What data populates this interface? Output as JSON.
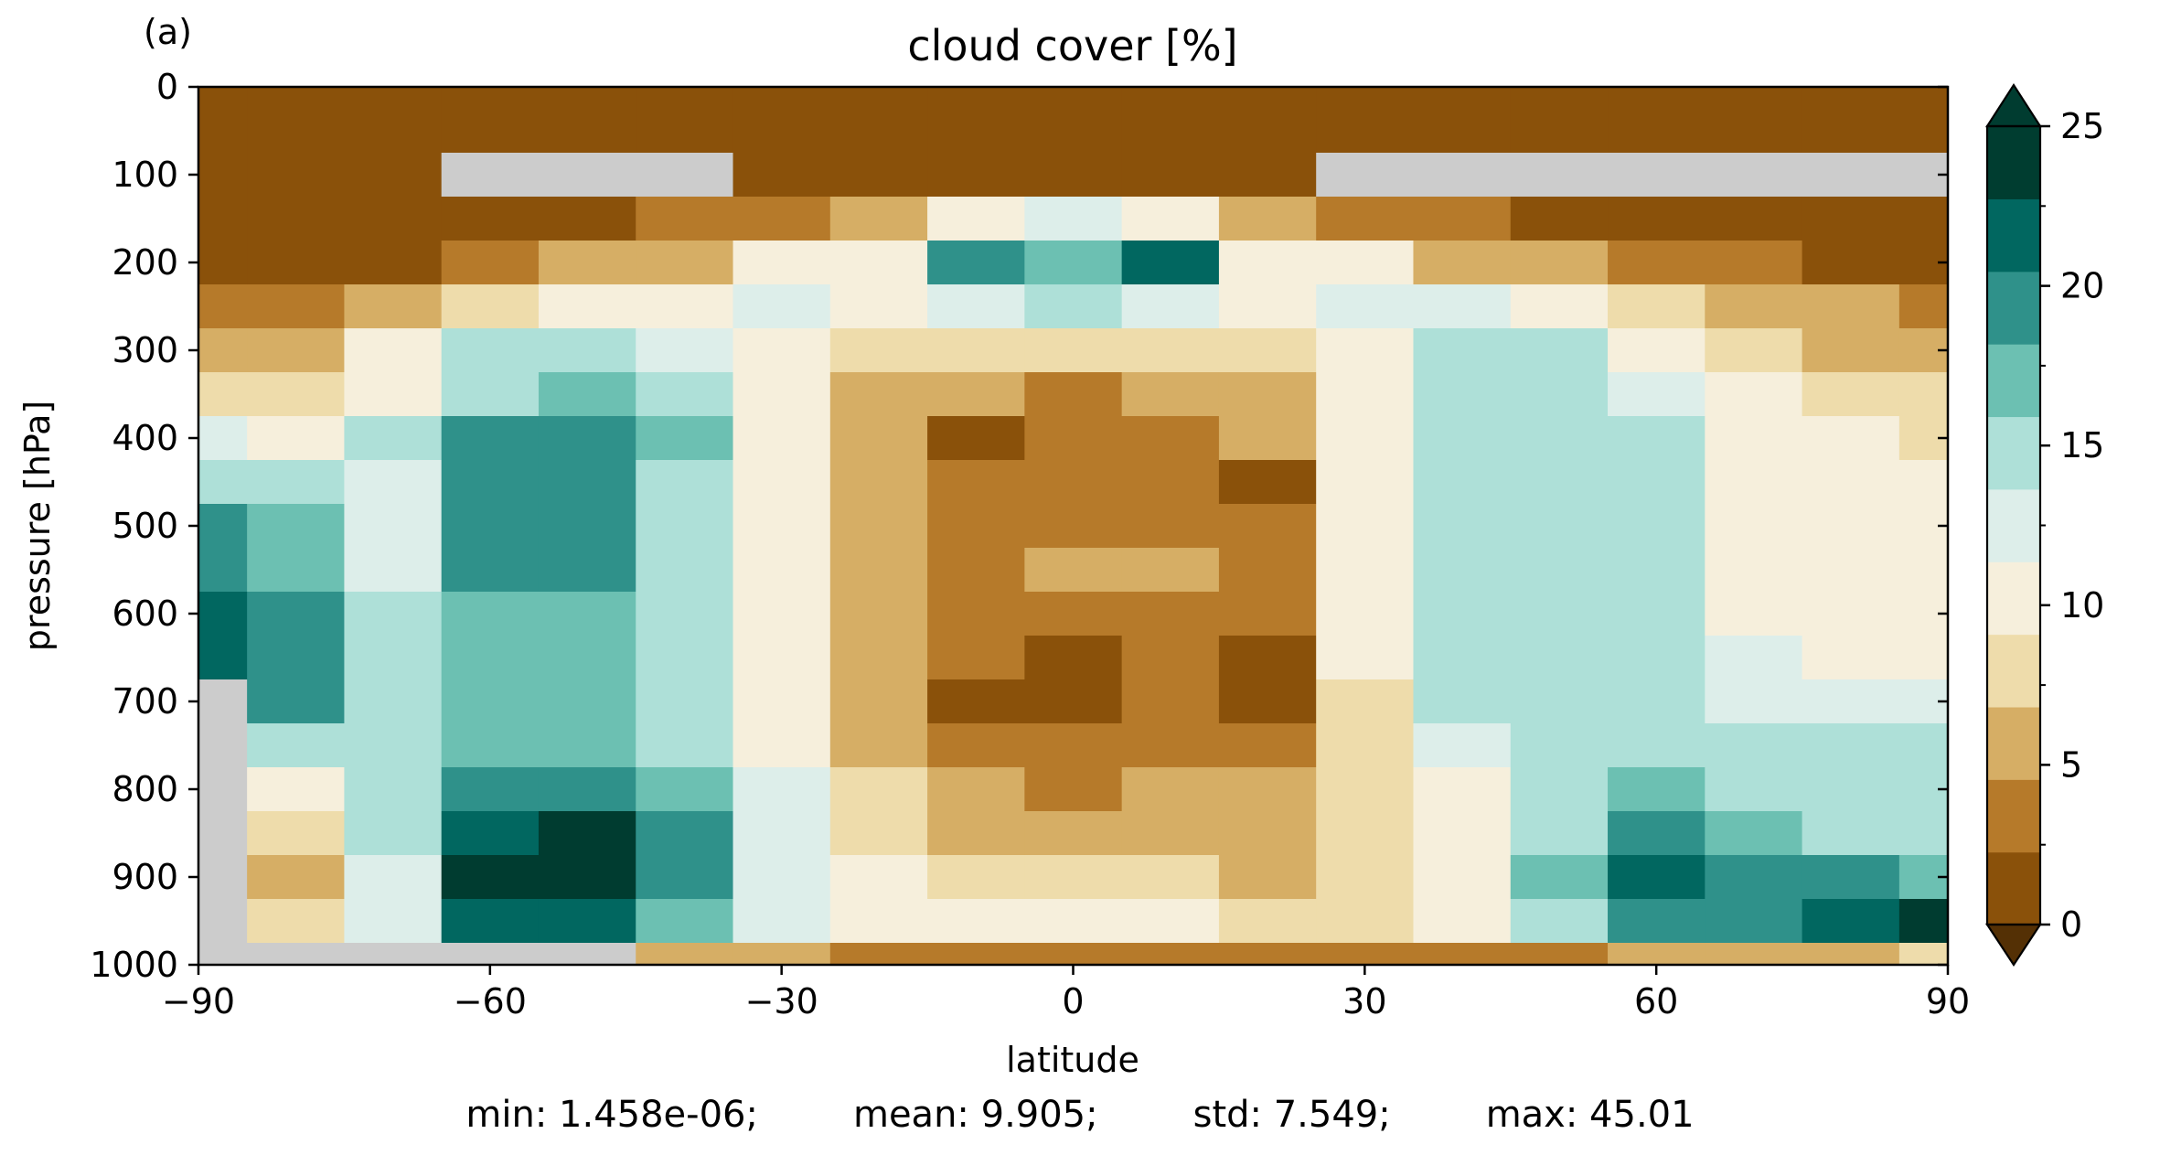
{
  "chart_data": {
    "type": "heatmap",
    "panel_label": "(a)",
    "title": "cloud cover [%]",
    "xlabel": "latitude",
    "ylabel": "pressure [hPa]",
    "xlim": [
      -90,
      90
    ],
    "ylim": [
      1000,
      0
    ],
    "x_ticks": [
      -90,
      -60,
      -30,
      0,
      30,
      60,
      90
    ],
    "x_tick_labels": [
      "−90",
      "−60",
      "−30",
      "0",
      "30",
      "60",
      "90"
    ],
    "y_ticks": [
      0,
      100,
      200,
      300,
      400,
      500,
      600,
      700,
      800,
      900,
      1000
    ],
    "y_tick_labels": [
      "0",
      "100",
      "200",
      "300",
      "400",
      "500",
      "600",
      "700",
      "800",
      "900",
      "1000"
    ],
    "colorbar": {
      "levels": [
        0,
        2.5,
        5,
        7.5,
        10,
        12.5,
        15,
        17.5,
        20,
        22.5,
        25
      ],
      "tick_values": [
        0,
        5,
        10,
        15,
        20,
        25
      ],
      "tick_labels": [
        "0",
        "5",
        "10",
        "15",
        "20",
        "25"
      ],
      "colors": [
        "#8a510a",
        "#b67a2a",
        "#d6ae65",
        "#eedcab",
        "#f6efdc",
        "#ddeeea",
        "#aee0d8",
        "#6cc0b2",
        "#2f918a",
        "#016760",
        "#003d30"
      ],
      "extend": "both",
      "under_color": "#543005",
      "over_color": "#003c30"
    },
    "missing_color": "#cccccc",
    "grid_lat": [
      -90,
      -80,
      -70,
      -60,
      -50,
      -40,
      -30,
      -20,
      -10,
      0,
      10,
      20,
      30,
      40,
      50,
      60,
      70,
      80,
      90
    ],
    "grid_p": [
      50,
      100,
      150,
      200,
      250,
      300,
      350,
      400,
      450,
      500,
      550,
      600,
      650,
      700,
      750,
      800,
      850,
      900,
      950,
      1000
    ],
    "values": [
      [
        1,
        1,
        1,
        1,
        1,
        1,
        1,
        1,
        1,
        1,
        1,
        1,
        1,
        1,
        1,
        1,
        1,
        1,
        1
      ],
      [
        1,
        1,
        1,
        1,
        1,
        1,
        1,
        2,
        2,
        2,
        2,
        2,
        1,
        1,
        1,
        1,
        1,
        1,
        1
      ],
      [
        1,
        1,
        1,
        1,
        2,
        3,
        4,
        6,
        11,
        13,
        11,
        6,
        4,
        3,
        2,
        1,
        1,
        1,
        1
      ],
      [
        2,
        2,
        2,
        3,
        5,
        7,
        10,
        12,
        22,
        19,
        23,
        12,
        10,
        7,
        5,
        4,
        3,
        2,
        2
      ],
      [
        4,
        4,
        7,
        8,
        10,
        12,
        13,
        11,
        14,
        15,
        14,
        11,
        13,
        13,
        10,
        8,
        6,
        5,
        4
      ],
      [
        6,
        7,
        10,
        15,
        17,
        13,
        10,
        8,
        8,
        8,
        8,
        8,
        10,
        16,
        15,
        12,
        9,
        7,
        6
      ],
      [
        8,
        8,
        10,
        17,
        19,
        16,
        11,
        6,
        5,
        4,
        5,
        6,
        11,
        16,
        16,
        14,
        11,
        9,
        8
      ],
      [
        13,
        12,
        15,
        20,
        20,
        18,
        12,
        6,
        2,
        3,
        4,
        6,
        11,
        16,
        16,
        15,
        12,
        10,
        9
      ],
      [
        16,
        15,
        14,
        20,
        21,
        17,
        12,
        6,
        4,
        4,
        4,
        2,
        10,
        16,
        16,
        15,
        12,
        11,
        10
      ],
      [
        20,
        18,
        14,
        21,
        21,
        16,
        11,
        6,
        4,
        4,
        4,
        4,
        11,
        16,
        16,
        15,
        12,
        11,
        11
      ],
      [
        22,
        19,
        14,
        21,
        20,
        16,
        10,
        6,
        4,
        7,
        7,
        4,
        11,
        16,
        16,
        15,
        12,
        12,
        11
      ],
      [
        23,
        20,
        15,
        19,
        19,
        16,
        10,
        6,
        4,
        4,
        3,
        3,
        11,
        16,
        16,
        15,
        12,
        12,
        12
      ],
      [
        24,
        20,
        16,
        19,
        18,
        15,
        10,
        6,
        3,
        2,
        3,
        2,
        10,
        16,
        16,
        16,
        13,
        12,
        12
      ],
      [
        0,
        20,
        16,
        18,
        18,
        15,
        11,
        6,
        2,
        2,
        3,
        2,
        9,
        15,
        16,
        15,
        13,
        13,
        13
      ],
      [
        0,
        16,
        16,
        18,
        19,
        15,
        11,
        7,
        3,
        3,
        3,
        3,
        8,
        14,
        15,
        16,
        15,
        15,
        15
      ],
      [
        0,
        10,
        16,
        21,
        21,
        18,
        13,
        8,
        5,
        4,
        5,
        5,
        8,
        12,
        15,
        18,
        17,
        16,
        16
      ],
      [
        0,
        8,
        15,
        24,
        25,
        20,
        13,
        9,
        7,
        6,
        6,
        6,
        8,
        12,
        17,
        21,
        19,
        17,
        17
      ],
      [
        0,
        7,
        14,
        25,
        26,
        21,
        13,
        10,
        9,
        8,
        9,
        7,
        8,
        12,
        19,
        23,
        21,
        20,
        19
      ],
      [
        0,
        8,
        14,
        24,
        23,
        18,
        13,
        11,
        12,
        12,
        11,
        9,
        9,
        12,
        17,
        22,
        22,
        24,
        25
      ],
      [
        0,
        0,
        2,
        4,
        5,
        5,
        5,
        4,
        4,
        4,
        4,
        4,
        3,
        3,
        4,
        5,
        6,
        7,
        8
      ]
    ],
    "missing_mask": [
      [
        0,
        0,
        0,
        0,
        0,
        0,
        0,
        0,
        0,
        0,
        0,
        0,
        0,
        0,
        0,
        0,
        0,
        0,
        0
      ],
      [
        0,
        0,
        0,
        1,
        1,
        1,
        0,
        0,
        0,
        0,
        0,
        0,
        1,
        1,
        1,
        1,
        1,
        1,
        1
      ],
      [
        0,
        0,
        0,
        0,
        0,
        0,
        0,
        0,
        0,
        0,
        0,
        0,
        0,
        0,
        0,
        0,
        0,
        0,
        0
      ],
      [
        0,
        0,
        0,
        0,
        0,
        0,
        0,
        0,
        0,
        0,
        0,
        0,
        0,
        0,
        0,
        0,
        0,
        0,
        0
      ],
      [
        0,
        0,
        0,
        0,
        0,
        0,
        0,
        0,
        0,
        0,
        0,
        0,
        0,
        0,
        0,
        0,
        0,
        0,
        0
      ],
      [
        0,
        0,
        0,
        0,
        0,
        0,
        0,
        0,
        0,
        0,
        0,
        0,
        0,
        0,
        0,
        0,
        0,
        0,
        0
      ],
      [
        0,
        0,
        0,
        0,
        0,
        0,
        0,
        0,
        0,
        0,
        0,
        0,
        0,
        0,
        0,
        0,
        0,
        0,
        0
      ],
      [
        0,
        0,
        0,
        0,
        0,
        0,
        0,
        0,
        0,
        0,
        0,
        0,
        0,
        0,
        0,
        0,
        0,
        0,
        0
      ],
      [
        0,
        0,
        0,
        0,
        0,
        0,
        0,
        0,
        0,
        0,
        0,
        0,
        0,
        0,
        0,
        0,
        0,
        0,
        0
      ],
      [
        0,
        0,
        0,
        0,
        0,
        0,
        0,
        0,
        0,
        0,
        0,
        0,
        0,
        0,
        0,
        0,
        0,
        0,
        0
      ],
      [
        0,
        0,
        0,
        0,
        0,
        0,
        0,
        0,
        0,
        0,
        0,
        0,
        0,
        0,
        0,
        0,
        0,
        0,
        0
      ],
      [
        0,
        0,
        0,
        0,
        0,
        0,
        0,
        0,
        0,
        0,
        0,
        0,
        0,
        0,
        0,
        0,
        0,
        0,
        0
      ],
      [
        0,
        0,
        0,
        0,
        0,
        0,
        0,
        0,
        0,
        0,
        0,
        0,
        0,
        0,
        0,
        0,
        0,
        0,
        0
      ],
      [
        1,
        0,
        0,
        0,
        0,
        0,
        0,
        0,
        0,
        0,
        0,
        0,
        0,
        0,
        0,
        0,
        0,
        0,
        0
      ],
      [
        1,
        0,
        0,
        0,
        0,
        0,
        0,
        0,
        0,
        0,
        0,
        0,
        0,
        0,
        0,
        0,
        0,
        0,
        0
      ],
      [
        1,
        0,
        0,
        0,
        0,
        0,
        0,
        0,
        0,
        0,
        0,
        0,
        0,
        0,
        0,
        0,
        0,
        0,
        0
      ],
      [
        1,
        0,
        0,
        0,
        0,
        0,
        0,
        0,
        0,
        0,
        0,
        0,
        0,
        0,
        0,
        0,
        0,
        0,
        0
      ],
      [
        1,
        0,
        0,
        0,
        0,
        0,
        0,
        0,
        0,
        0,
        0,
        0,
        0,
        0,
        0,
        0,
        0,
        0,
        0
      ],
      [
        1,
        0,
        0,
        0,
        0,
        0,
        0,
        0,
        0,
        0,
        0,
        0,
        0,
        0,
        0,
        0,
        0,
        0,
        0
      ],
      [
        1,
        1,
        1,
        1,
        1,
        0,
        0,
        0,
        0,
        0,
        0,
        0,
        0,
        0,
        0,
        0,
        0,
        0,
        0
      ]
    ],
    "stats": [
      "min: 1.458e-06;",
      "mean: 9.905;",
      "std: 7.549;",
      "max: 45.01"
    ]
  }
}
